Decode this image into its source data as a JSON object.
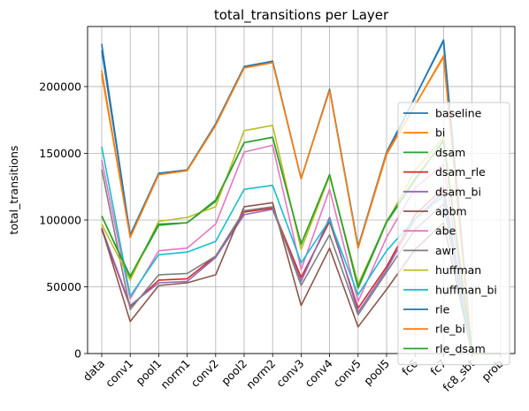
{
  "chart_data": {
    "type": "line",
    "title": "total_transitions per Layer",
    "xlabel": "",
    "ylabel": "total_transitions",
    "ylim": [
      0,
      245000
    ],
    "yticks": [
      0,
      50000,
      100000,
      150000,
      200000
    ],
    "ytick_labels": [
      "0",
      "50000",
      "100000",
      "150000",
      "200000"
    ],
    "grid": true,
    "legend_position": "right",
    "categories": [
      "data",
      "conv1",
      "pool1",
      "norm1",
      "conv2",
      "pool2",
      "norm2",
      "conv3",
      "conv4",
      "conv5",
      "pool5",
      "fc6",
      "fc7",
      "fc8_sbt",
      "prob"
    ],
    "series": [
      {
        "name": "baseline",
        "color": "#1f77b4",
        "values": [
          232000,
          88000,
          135000,
          137500,
          172000,
          215000,
          219000,
          131000,
          198000,
          80000,
          150000,
          192000,
          235000,
          0,
          0
        ]
      },
      {
        "name": "bi",
        "color": "#ff7f0e",
        "values": [
          212000,
          87000,
          134000,
          137000,
          171000,
          214000,
          218000,
          131000,
          198000,
          79000,
          149000,
          186000,
          223000,
          0,
          0
        ]
      },
      {
        "name": "dsam",
        "color": "#2ca02c",
        "values": [
          103000,
          57000,
          96000,
          98000,
          114000,
          158000,
          162000,
          82000,
          134000,
          49000,
          98000,
          130000,
          160000,
          0,
          0
        ]
      },
      {
        "name": "dsam_rle",
        "color": "#d62728",
        "values": [
          93000,
          35000,
          55000,
          56000,
          73000,
          106000,
          109000,
          57000,
          99000,
          34000,
          65000,
          104000,
          124000,
          0,
          0
        ]
      },
      {
        "name": "dsam_bi",
        "color": "#9467bd",
        "values": [
          94000,
          36000,
          53000,
          54000,
          72000,
          104000,
          108000,
          54000,
          102000,
          31000,
          63000,
          101000,
          121000,
          0,
          0
        ]
      },
      {
        "name": "apbm",
        "color": "#8c564b",
        "values": [
          94000,
          24000,
          51000,
          53000,
          59000,
          110000,
          113000,
          36000,
          79000,
          20000,
          48000,
          78000,
          98000,
          0,
          0
        ]
      },
      {
        "name": "abe",
        "color": "#e377c2",
        "values": [
          145000,
          41000,
          77000,
          79000,
          97000,
          151000,
          156000,
          63000,
          123000,
          39000,
          87000,
          124000,
          142000,
          0,
          0
        ]
      },
      {
        "name": "awr",
        "color": "#7f7f7f",
        "values": [
          138000,
          33000,
          59000,
          60000,
          73000,
          107000,
          110000,
          51000,
          89000,
          29000,
          61000,
          93000,
          112000,
          0,
          0
        ]
      },
      {
        "name": "huffman",
        "color": "#bcbd22",
        "values": [
          97000,
          55000,
          99000,
          102000,
          110000,
          167000,
          171000,
          78000,
          133000,
          52000,
          98000,
          137000,
          162000,
          0,
          0
        ]
      },
      {
        "name": "huffman_bi",
        "color": "#17becf",
        "values": [
          155000,
          43000,
          74000,
          76000,
          84000,
          123000,
          126000,
          68000,
          100000,
          44000,
          77000,
          101000,
          118000,
          0,
          0
        ]
      },
      {
        "name": "rle",
        "color": "#1f77b4",
        "values": [
          227000,
          89000,
          135000,
          137500,
          172000,
          215000,
          219000,
          131000,
          198000,
          80000,
          151000,
          192000,
          234000,
          0,
          0
        ]
      },
      {
        "name": "rle_bi",
        "color": "#ff7f0e",
        "values": [
          209000,
          87000,
          134000,
          137000,
          171000,
          214000,
          218000,
          131000,
          197000,
          79000,
          150000,
          186000,
          222000,
          0,
          0
        ]
      },
      {
        "name": "rle_dsam",
        "color": "#2ca02c",
        "values": [
          103000,
          58000,
          97000,
          98000,
          115000,
          158000,
          162000,
          82000,
          134000,
          50000,
          99000,
          131000,
          159000,
          0,
          0
        ]
      }
    ]
  }
}
